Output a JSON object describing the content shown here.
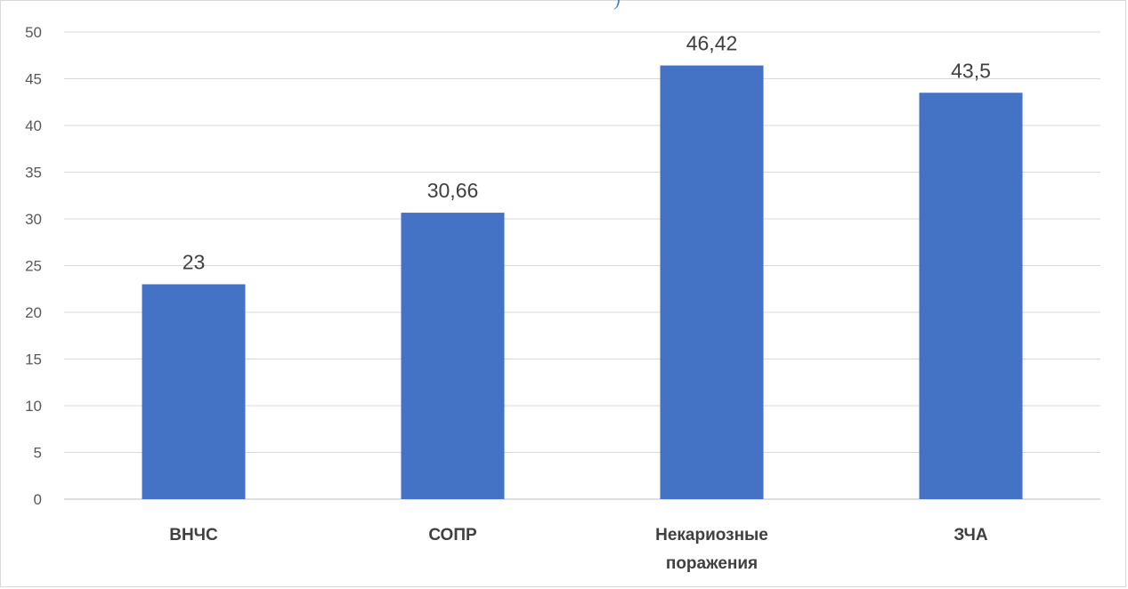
{
  "chart_data": {
    "type": "bar",
    "categories": [
      [
        "ВНЧС"
      ],
      [
        "СОПР"
      ],
      [
        "Некариозные",
        "поражения"
      ],
      [
        "ЗЧА"
      ]
    ],
    "values": [
      23,
      30.66,
      46.42,
      43.5
    ],
    "data_labels": [
      "23",
      "30,66",
      "46,42",
      "43,5"
    ],
    "ylim": [
      0,
      50
    ],
    "yticks": [
      0,
      5,
      10,
      15,
      20,
      25,
      30,
      35,
      40,
      45,
      50
    ],
    "grid": true,
    "legend": "none",
    "bar_color": "#4472c4",
    "title": "",
    "xlabel": "",
    "ylabel": ""
  },
  "top_fragment": ")"
}
